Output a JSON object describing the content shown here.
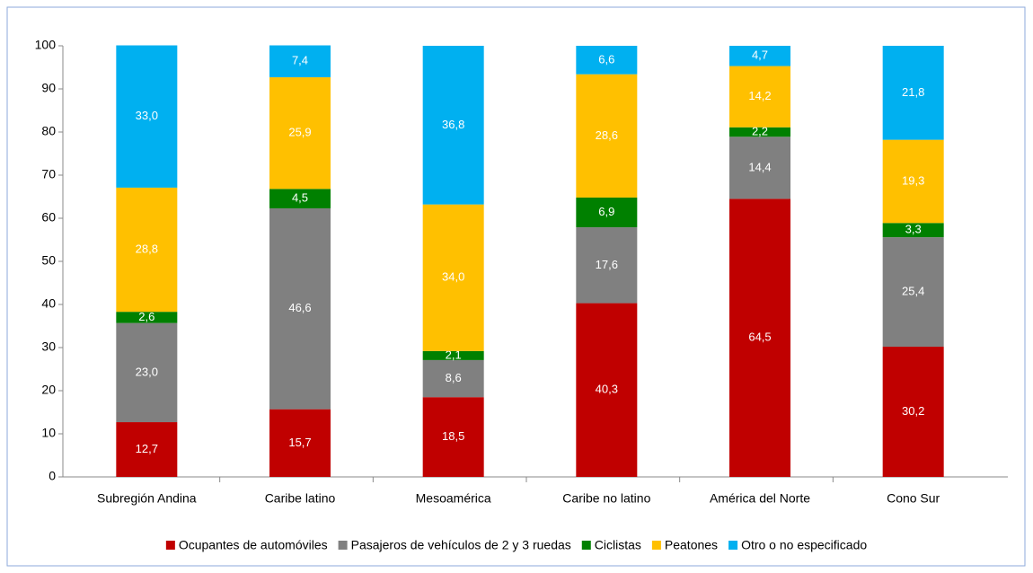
{
  "chart_data": {
    "type": "stacked_bar",
    "categories": [
      "Subregión Andina",
      "Caribe latino",
      "Mesoamérica",
      "Caribe no latino",
      "América del Norte",
      "Cono Sur"
    ],
    "series": [
      {
        "name": "Ocupantes de automóviles",
        "color": "#c00000",
        "values": [
          12.7,
          15.7,
          18.5,
          40.3,
          64.5,
          30.2
        ],
        "value_labels": [
          "12,7",
          "15,7",
          "18,5",
          "40,3",
          "64,5",
          "30,2"
        ]
      },
      {
        "name": "Pasajeros de vehículos de 2 y 3 ruedas",
        "color": "#808080",
        "values": [
          23.0,
          46.6,
          8.6,
          17.6,
          14.4,
          25.4
        ],
        "value_labels": [
          "23,0",
          "46,6",
          "8,6",
          "17,6",
          "14,4",
          "25,4"
        ]
      },
      {
        "name": "Ciclistas",
        "color": "#008000",
        "values": [
          2.6,
          4.5,
          2.1,
          6.9,
          2.2,
          3.3
        ],
        "value_labels": [
          "2,6",
          "4,5",
          "2,1",
          "6,9",
          "2,2",
          "3,3"
        ]
      },
      {
        "name": "Peatones",
        "color": "#ffc000",
        "values": [
          28.8,
          25.9,
          34.0,
          28.6,
          14.2,
          19.3
        ],
        "value_labels": [
          "28,8",
          "25,9",
          "34,0",
          "28,6",
          "14,2",
          "19,3"
        ]
      },
      {
        "name": "Otro o no especificado",
        "color": "#00b0f0",
        "values": [
          33.0,
          7.4,
          36.8,
          6.6,
          4.7,
          21.8
        ],
        "value_labels": [
          "33,0",
          "7,4",
          "36,8",
          "6,6",
          "4,7",
          "21,8"
        ]
      }
    ],
    "ylim": [
      0,
      100
    ],
    "yticks": [
      0,
      10,
      20,
      30,
      40,
      50,
      60,
      70,
      80,
      90,
      100
    ],
    "grid": false,
    "legend": "bottom"
  }
}
